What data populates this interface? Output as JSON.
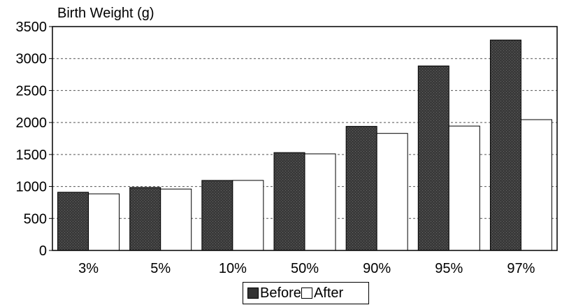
{
  "chart_data": {
    "type": "bar",
    "ylabel": "Birth Weight (g)",
    "xlabel": "",
    "categories": [
      "3%",
      "5%",
      "10%",
      "50%",
      "90%",
      "95%",
      "97%"
    ],
    "series": [
      {
        "name": "Before",
        "values": [
          910,
          985,
          1095,
          1530,
          1940,
          2885,
          3290
        ],
        "color": "#333333"
      },
      {
        "name": "After",
        "values": [
          885,
          960,
          1095,
          1510,
          1830,
          1945,
          2045
        ],
        "color": "#ffffff"
      }
    ],
    "ylim": [
      0,
      3500
    ],
    "yticks": [
      0,
      500,
      1000,
      1500,
      2000,
      2500,
      3000,
      3500
    ],
    "grid": "horizontal dashed",
    "legend": "bottom"
  }
}
